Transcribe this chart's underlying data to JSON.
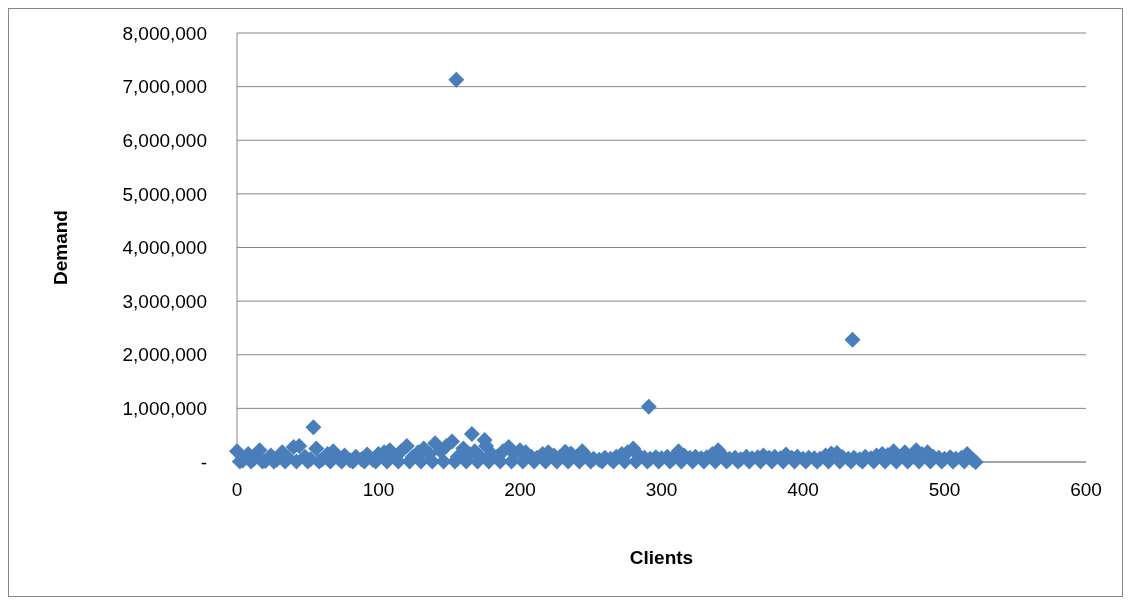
{
  "chart_data": {
    "type": "scatter",
    "xlabel": "Clients",
    "ylabel": "Demand",
    "marker": "diamond",
    "grid": "y",
    "color": "#4a7ebb",
    "xlim": [
      0,
      600
    ],
    "xticks": [
      0,
      100,
      200,
      300,
      400,
      500,
      600
    ],
    "ylim": [
      0,
      8000000
    ],
    "yticks": [
      {
        "value": 0,
        "label": "-"
      },
      {
        "value": 1000000,
        "label": "1,000,000"
      },
      {
        "value": 2000000,
        "label": "2,000,000"
      },
      {
        "value": 3000000,
        "label": "3,000,000"
      },
      {
        "value": 4000000,
        "label": "4,000,000"
      },
      {
        "value": 5000000,
        "label": "5,000,000"
      },
      {
        "value": 6000000,
        "label": "6,000,000"
      },
      {
        "value": 7000000,
        "label": "7,000,000"
      },
      {
        "value": 8000000,
        "label": "8,000,000"
      }
    ],
    "x": [
      0,
      4,
      8,
      12,
      16,
      20,
      24,
      28,
      32,
      36,
      40,
      44,
      48,
      52,
      56,
      60,
      64,
      68,
      72,
      76,
      80,
      84,
      88,
      92,
      96,
      100,
      104,
      108,
      112,
      116,
      120,
      124,
      128,
      132,
      136,
      140,
      144,
      148,
      152,
      156,
      160,
      164,
      168,
      172,
      176,
      180,
      184,
      188,
      192,
      196,
      200,
      204,
      208,
      212,
      216,
      220,
      224,
      228,
      232,
      236,
      240,
      244,
      248,
      252,
      256,
      260,
      264,
      268,
      272,
      276,
      280,
      284,
      288,
      292,
      296,
      300,
      304,
      308,
      312,
      316,
      320,
      324,
      328,
      332,
      336,
      340,
      344,
      348,
      352,
      356,
      360,
      364,
      368,
      372,
      376,
      380,
      384,
      388,
      392,
      396,
      400,
      404,
      408,
      412,
      416,
      420,
      424,
      428,
      432,
      436,
      440,
      444,
      448,
      452,
      456,
      460,
      464,
      468,
      472,
      476,
      480,
      484,
      488,
      492,
      496,
      500,
      504,
      508,
      512,
      516,
      520,
      2,
      10,
      18,
      26,
      34,
      42,
      50,
      58,
      66,
      74,
      82,
      90,
      98,
      106,
      114,
      122,
      130,
      138,
      146,
      154,
      162,
      170,
      178,
      186,
      194,
      202,
      210,
      218,
      226,
      234,
      242,
      250,
      258,
      266,
      274,
      282,
      290,
      298,
      306,
      314,
      322,
      330,
      338,
      346,
      354,
      362,
      370,
      378,
      386,
      394,
      402,
      410,
      418,
      426,
      434,
      442,
      450,
      458,
      466,
      474,
      482,
      490,
      498,
      506,
      514,
      522,
      54,
      155,
      166,
      175,
      291,
      435
    ],
    "values": [
      200000,
      30000,
      150000,
      60000,
      220000,
      20000,
      120000,
      40000,
      180000,
      80000,
      280000,
      300000,
      100000,
      50000,
      250000,
      40000,
      150000,
      200000,
      60000,
      120000,
      30000,
      100000,
      50000,
      140000,
      40000,
      150000,
      180000,
      220000,
      120000,
      200000,
      300000,
      90000,
      180000,
      250000,
      150000,
      350000,
      200000,
      300000,
      380000,
      100000,
      250000,
      150000,
      200000,
      100000,
      300000,
      150000,
      100000,
      200000,
      280000,
      150000,
      220000,
      180000,
      100000,
      80000,
      150000,
      180000,
      120000,
      90000,
      190000,
      160000,
      100000,
      200000,
      80000,
      60000,
      40000,
      80000,
      60000,
      100000,
      150000,
      180000,
      250000,
      120000,
      80000,
      60000,
      90000,
      70000,
      100000,
      60000,
      200000,
      120000,
      80000,
      100000,
      70000,
      90000,
      150000,
      220000,
      100000,
      60000,
      80000,
      50000,
      100000,
      70000,
      90000,
      120000,
      80000,
      100000,
      70000,
      140000,
      80000,
      100000,
      60000,
      80000,
      70000,
      60000,
      120000,
      160000,
      170000,
      90000,
      60000,
      80000,
      50000,
      100000,
      70000,
      120000,
      150000,
      130000,
      200000,
      100000,
      180000,
      90000,
      220000,
      150000,
      180000,
      100000,
      80000,
      60000,
      90000,
      60000,
      80000,
      150000,
      40000,
      10000,
      10000,
      10000,
      10000,
      10000,
      10000,
      10000,
      10000,
      10000,
      10000,
      10000,
      10000,
      10000,
      10000,
      10000,
      10000,
      10000,
      10000,
      10000,
      10000,
      10000,
      10000,
      10000,
      10000,
      10000,
      10000,
      10000,
      10000,
      10000,
      10000,
      10000,
      10000,
      10000,
      10000,
      10000,
      10000,
      10000,
      10000,
      10000,
      10000,
      10000,
      10000,
      10000,
      10000,
      10000,
      10000,
      10000,
      10000,
      10000,
      10000,
      10000,
      10000,
      10000,
      10000,
      10000,
      10000,
      10000,
      10000,
      10000,
      10000,
      10000,
      10000,
      10000,
      10000,
      10000,
      0,
      650000,
      7130000,
      520000,
      410000,
      1030000,
      2280000
    ]
  }
}
